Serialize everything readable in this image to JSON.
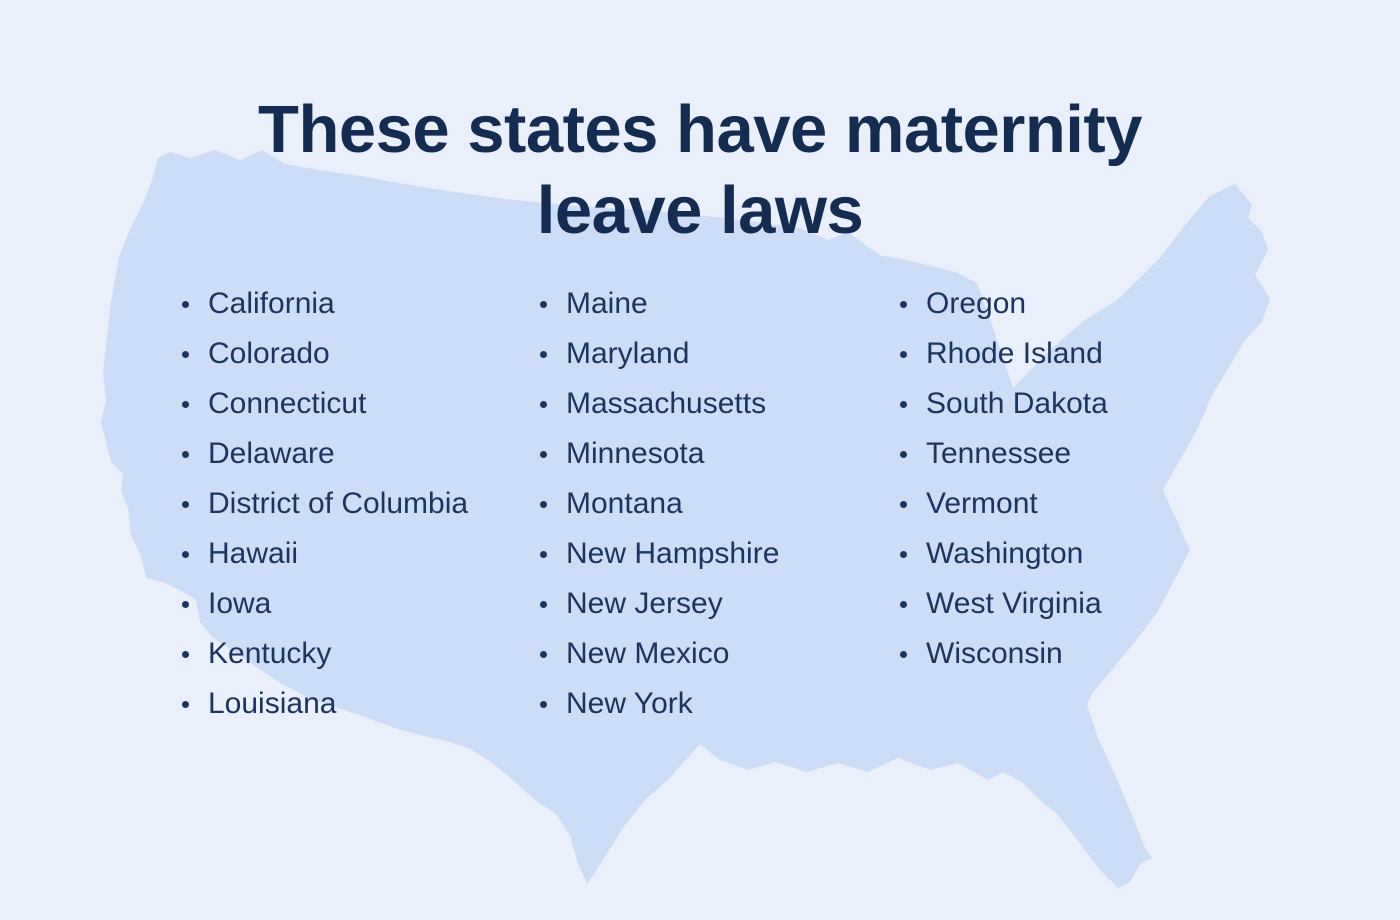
{
  "title": {
    "line1": "These states have maternity",
    "line2": "leave laws"
  },
  "map": {
    "icon": "usa-map-silhouette"
  },
  "columns": [
    {
      "items": [
        "California",
        "Colorado",
        "Connecticut",
        "Delaware",
        "District of Columbia",
        "Hawaii",
        "Iowa",
        "Kentucky",
        "Louisiana"
      ]
    },
    {
      "items": [
        "Maine",
        "Maryland",
        "Massachusetts",
        "Minnesota",
        "Montana",
        "New Hampshire",
        "New Jersey",
        "New Mexico",
        "New York"
      ]
    },
    {
      "items": [
        "Oregon",
        "Rhode Island",
        "South Dakota",
        "Tennessee",
        "Vermont",
        "Washington",
        "West Virginia",
        "Wisconsin"
      ]
    }
  ],
  "colors": {
    "background": "#E9EFFB",
    "map": "#CDDDF7",
    "text": "#1C3560",
    "title": "#142C52",
    "bullet": "#1C3560"
  }
}
